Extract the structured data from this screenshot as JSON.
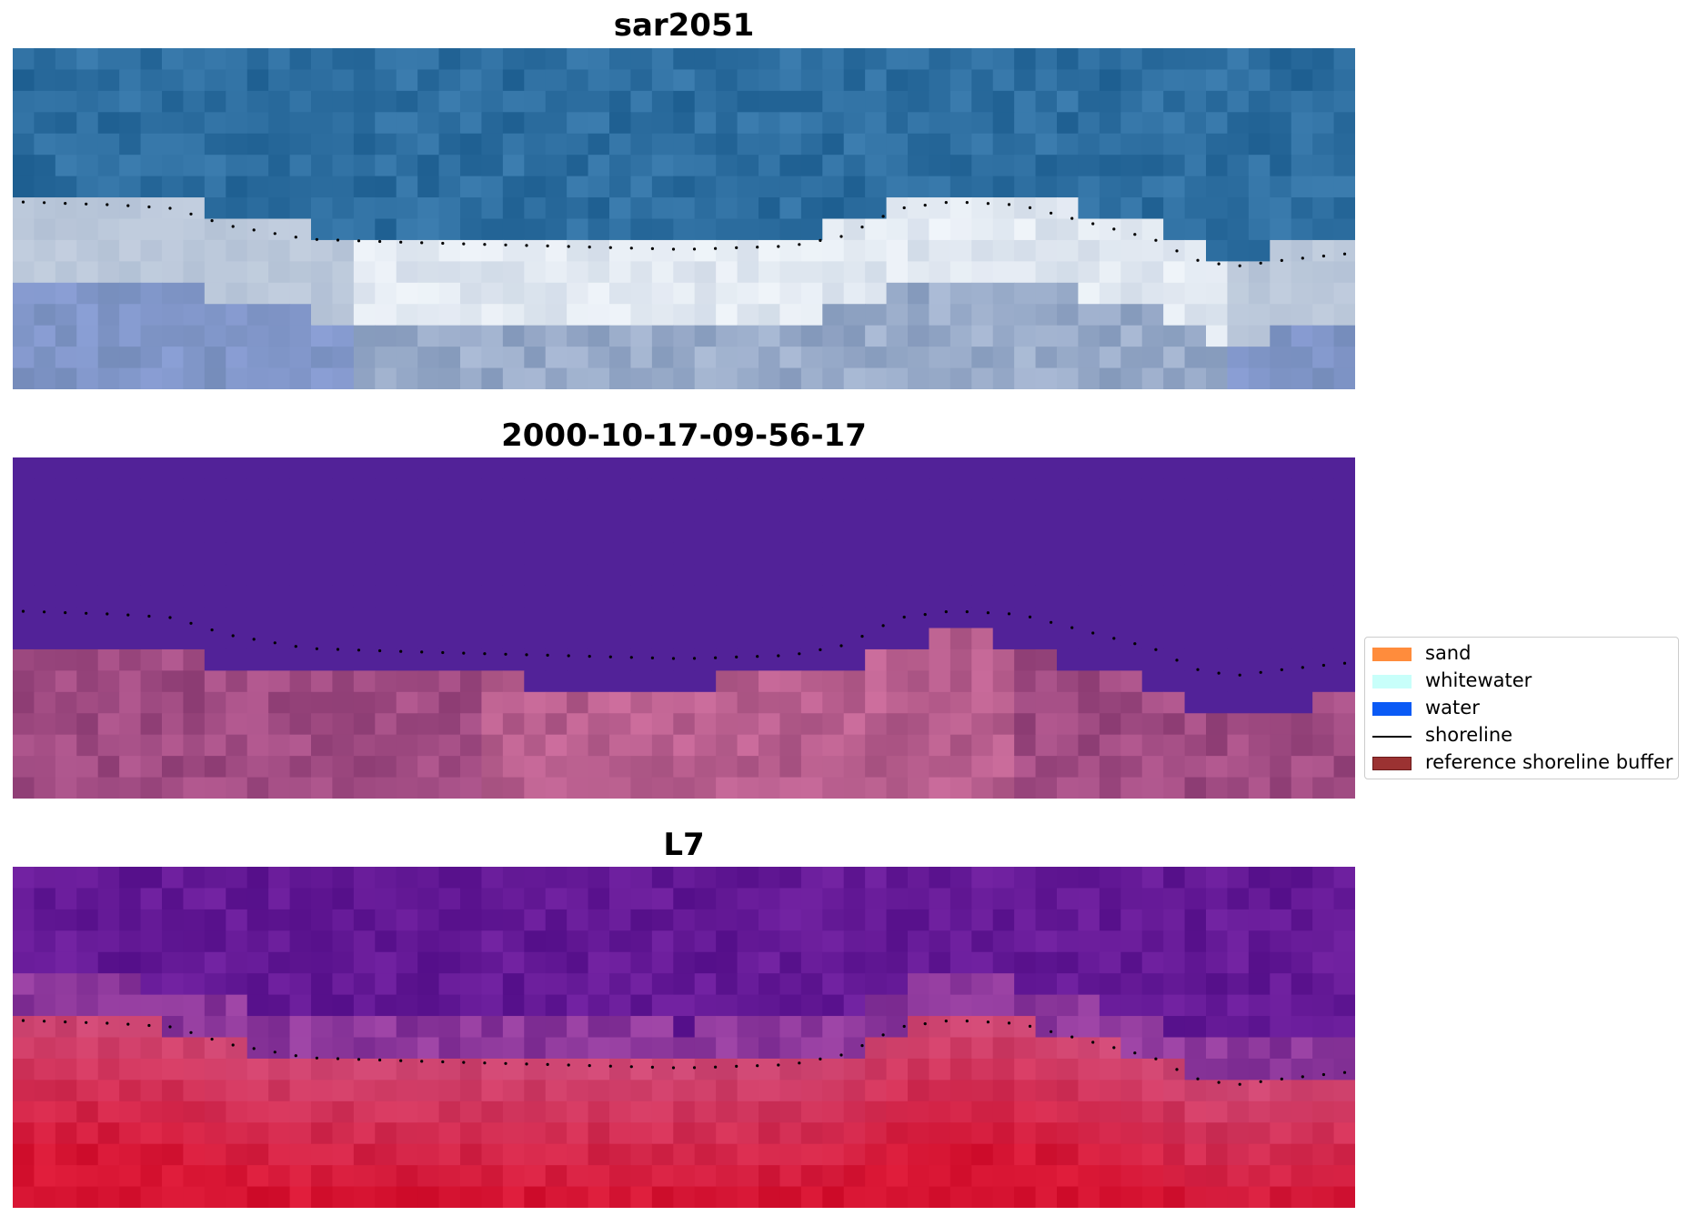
{
  "panels": [
    {
      "title": "sar2051",
      "scheme": "rgb"
    },
    {
      "title": "2000-10-17-09-56-17",
      "scheme": "class"
    },
    {
      "title": "L7",
      "scheme": "index"
    }
  ],
  "legend": {
    "items": [
      {
        "label": "sand",
        "color": "#ff8c3c",
        "kind": "patch"
      },
      {
        "label": "whitewater",
        "color": "#c8fffa",
        "kind": "patch"
      },
      {
        "label": "water",
        "color": "#0a5af5",
        "kind": "patch"
      },
      {
        "label": "shoreline",
        "color": "#000000",
        "kind": "line"
      },
      {
        "label": "reference shoreline buffer",
        "color": "#9b3232",
        "kind": "patch",
        "edge": "#6b1a1a"
      }
    ]
  }
}
